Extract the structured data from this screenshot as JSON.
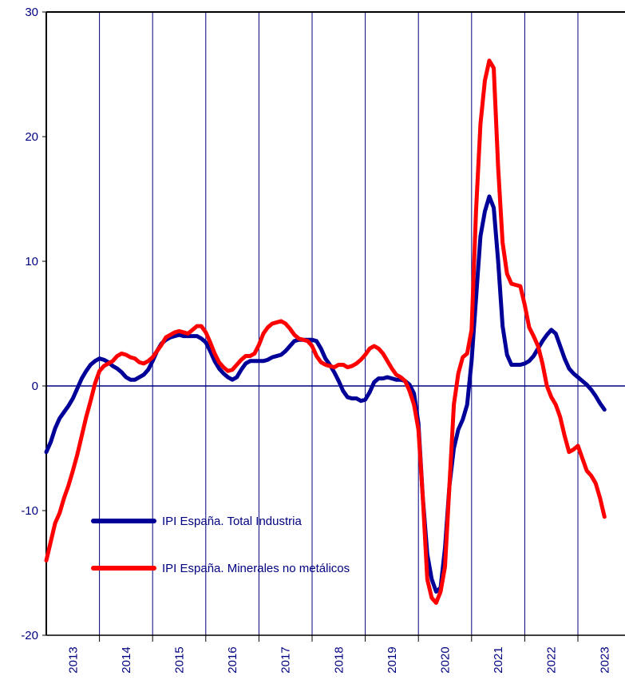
{
  "chart_data": {
    "type": "line",
    "categories": [
      null,
      null,
      null,
      null,
      null,
      null,
      "2013",
      null,
      null,
      null,
      null,
      null,
      null,
      null,
      null,
      null,
      null,
      null,
      "2014",
      null,
      null,
      null,
      null,
      null,
      null,
      null,
      null,
      null,
      null,
      null,
      "2015",
      null,
      null,
      null,
      null,
      null,
      null,
      null,
      null,
      null,
      null,
      null,
      "2016",
      null,
      null,
      null,
      null,
      null,
      null,
      null,
      null,
      null,
      null,
      null,
      "2017",
      null,
      null,
      null,
      null,
      null,
      null,
      null,
      null,
      null,
      null,
      null,
      "2018",
      null,
      null,
      null,
      null,
      null,
      null,
      null,
      null,
      null,
      null,
      null,
      "2019",
      null,
      null,
      null,
      null,
      null,
      null,
      null,
      null,
      null,
      null,
      null,
      "2020",
      null,
      null,
      null,
      null,
      null,
      null,
      null,
      null,
      null,
      null,
      null,
      "2021",
      null,
      null,
      null,
      null,
      null,
      null,
      null,
      null,
      null,
      null,
      null,
      "2022",
      null,
      null,
      null,
      null,
      null,
      null,
      null,
      null,
      null,
      null,
      null,
      "2023"
    ],
    "series": [
      {
        "name": "IPI España. Total Industria",
        "color": "#000099",
        "values": [
          -5.3,
          -4.5,
          -3.4,
          -2.6,
          -2.1,
          -1.6,
          -1.0,
          -0.2,
          0.6,
          1.2,
          1.7,
          2.0,
          2.2,
          2.1,
          1.9,
          1.6,
          1.4,
          1.1,
          0.7,
          0.5,
          0.5,
          0.7,
          0.9,
          1.3,
          2.0,
          2.8,
          3.4,
          3.7,
          3.9,
          4.0,
          4.1,
          4.0,
          4.0,
          4.0,
          4.0,
          3.8,
          3.5,
          2.8,
          2.0,
          1.4,
          1.0,
          0.7,
          0.5,
          0.7,
          1.3,
          1.8,
          2.0,
          2.0,
          2.0,
          2.0,
          2.1,
          2.3,
          2.4,
          2.5,
          2.8,
          3.2,
          3.6,
          3.7,
          3.7,
          3.7,
          3.7,
          3.6,
          3.0,
          2.2,
          1.7,
          1.1,
          0.4,
          -0.4,
          -0.9,
          -1.0,
          -1.0,
          -1.2,
          -1.1,
          -0.5,
          0.3,
          0.6,
          0.6,
          0.7,
          0.6,
          0.5,
          0.5,
          0.4,
          0.1,
          -0.6,
          -3.0,
          -9.0,
          -13.5,
          -15.5,
          -16.5,
          -16.2,
          -13.0,
          -8.0,
          -5.0,
          -3.5,
          -2.7,
          -1.5,
          2.0,
          7.0,
          12.0,
          14.0,
          15.2,
          14.3,
          10.0,
          4.8,
          2.5,
          1.7,
          1.7,
          1.7,
          1.8,
          2.0,
          2.4,
          3.0,
          3.6,
          4.1,
          4.5,
          4.2,
          3.2,
          2.2,
          1.4,
          1.0,
          0.7,
          0.4,
          0.1,
          -0.3,
          -0.8,
          -1.4,
          -1.9
        ]
      },
      {
        "name": "IPI España. Minerales no metálicos",
        "color": "#ff0000",
        "values": [
          -14.0,
          -12.5,
          -11.0,
          -10.2,
          -9.0,
          -8.0,
          -6.8,
          -5.5,
          -4.0,
          -2.5,
          -1.2,
          0.2,
          1.2,
          1.6,
          1.8,
          2.0,
          2.4,
          2.6,
          2.5,
          2.3,
          2.2,
          1.9,
          1.8,
          2.0,
          2.3,
          2.8,
          3.3,
          3.9,
          4.1,
          4.3,
          4.4,
          4.3,
          4.2,
          4.5,
          4.8,
          4.8,
          4.3,
          3.5,
          2.6,
          1.9,
          1.5,
          1.2,
          1.3,
          1.7,
          2.1,
          2.4,
          2.4,
          2.6,
          3.3,
          4.2,
          4.7,
          5.0,
          5.1,
          5.2,
          5.0,
          4.6,
          4.1,
          3.8,
          3.7,
          3.6,
          3.2,
          2.4,
          1.9,
          1.7,
          1.6,
          1.5,
          1.7,
          1.7,
          1.5,
          1.6,
          1.8,
          2.1,
          2.5,
          3.0,
          3.2,
          3.0,
          2.6,
          2.0,
          1.4,
          0.9,
          0.7,
          0.4,
          -0.4,
          -1.5,
          -3.5,
          -9.0,
          -15.5,
          -17.0,
          -17.4,
          -16.5,
          -14.5,
          -8.0,
          -1.5,
          1.0,
          2.3,
          2.6,
          4.5,
          14.0,
          21.0,
          24.5,
          26.1,
          25.5,
          17.5,
          11.5,
          9.0,
          8.2,
          8.1,
          8.0,
          6.5,
          4.7,
          4.0,
          3.2,
          1.8,
          0,
          -0.9,
          -1.5,
          -2.5,
          -4.0,
          -5.3,
          -5.1,
          -4.8,
          -5.8,
          -6.8,
          -7.2,
          -7.8,
          -9.0,
          -10.5
        ]
      }
    ],
    "ylim": [
      -20,
      30
    ],
    "yticks": [
      -20,
      -10,
      0,
      10,
      20,
      30
    ],
    "grid": true
  }
}
